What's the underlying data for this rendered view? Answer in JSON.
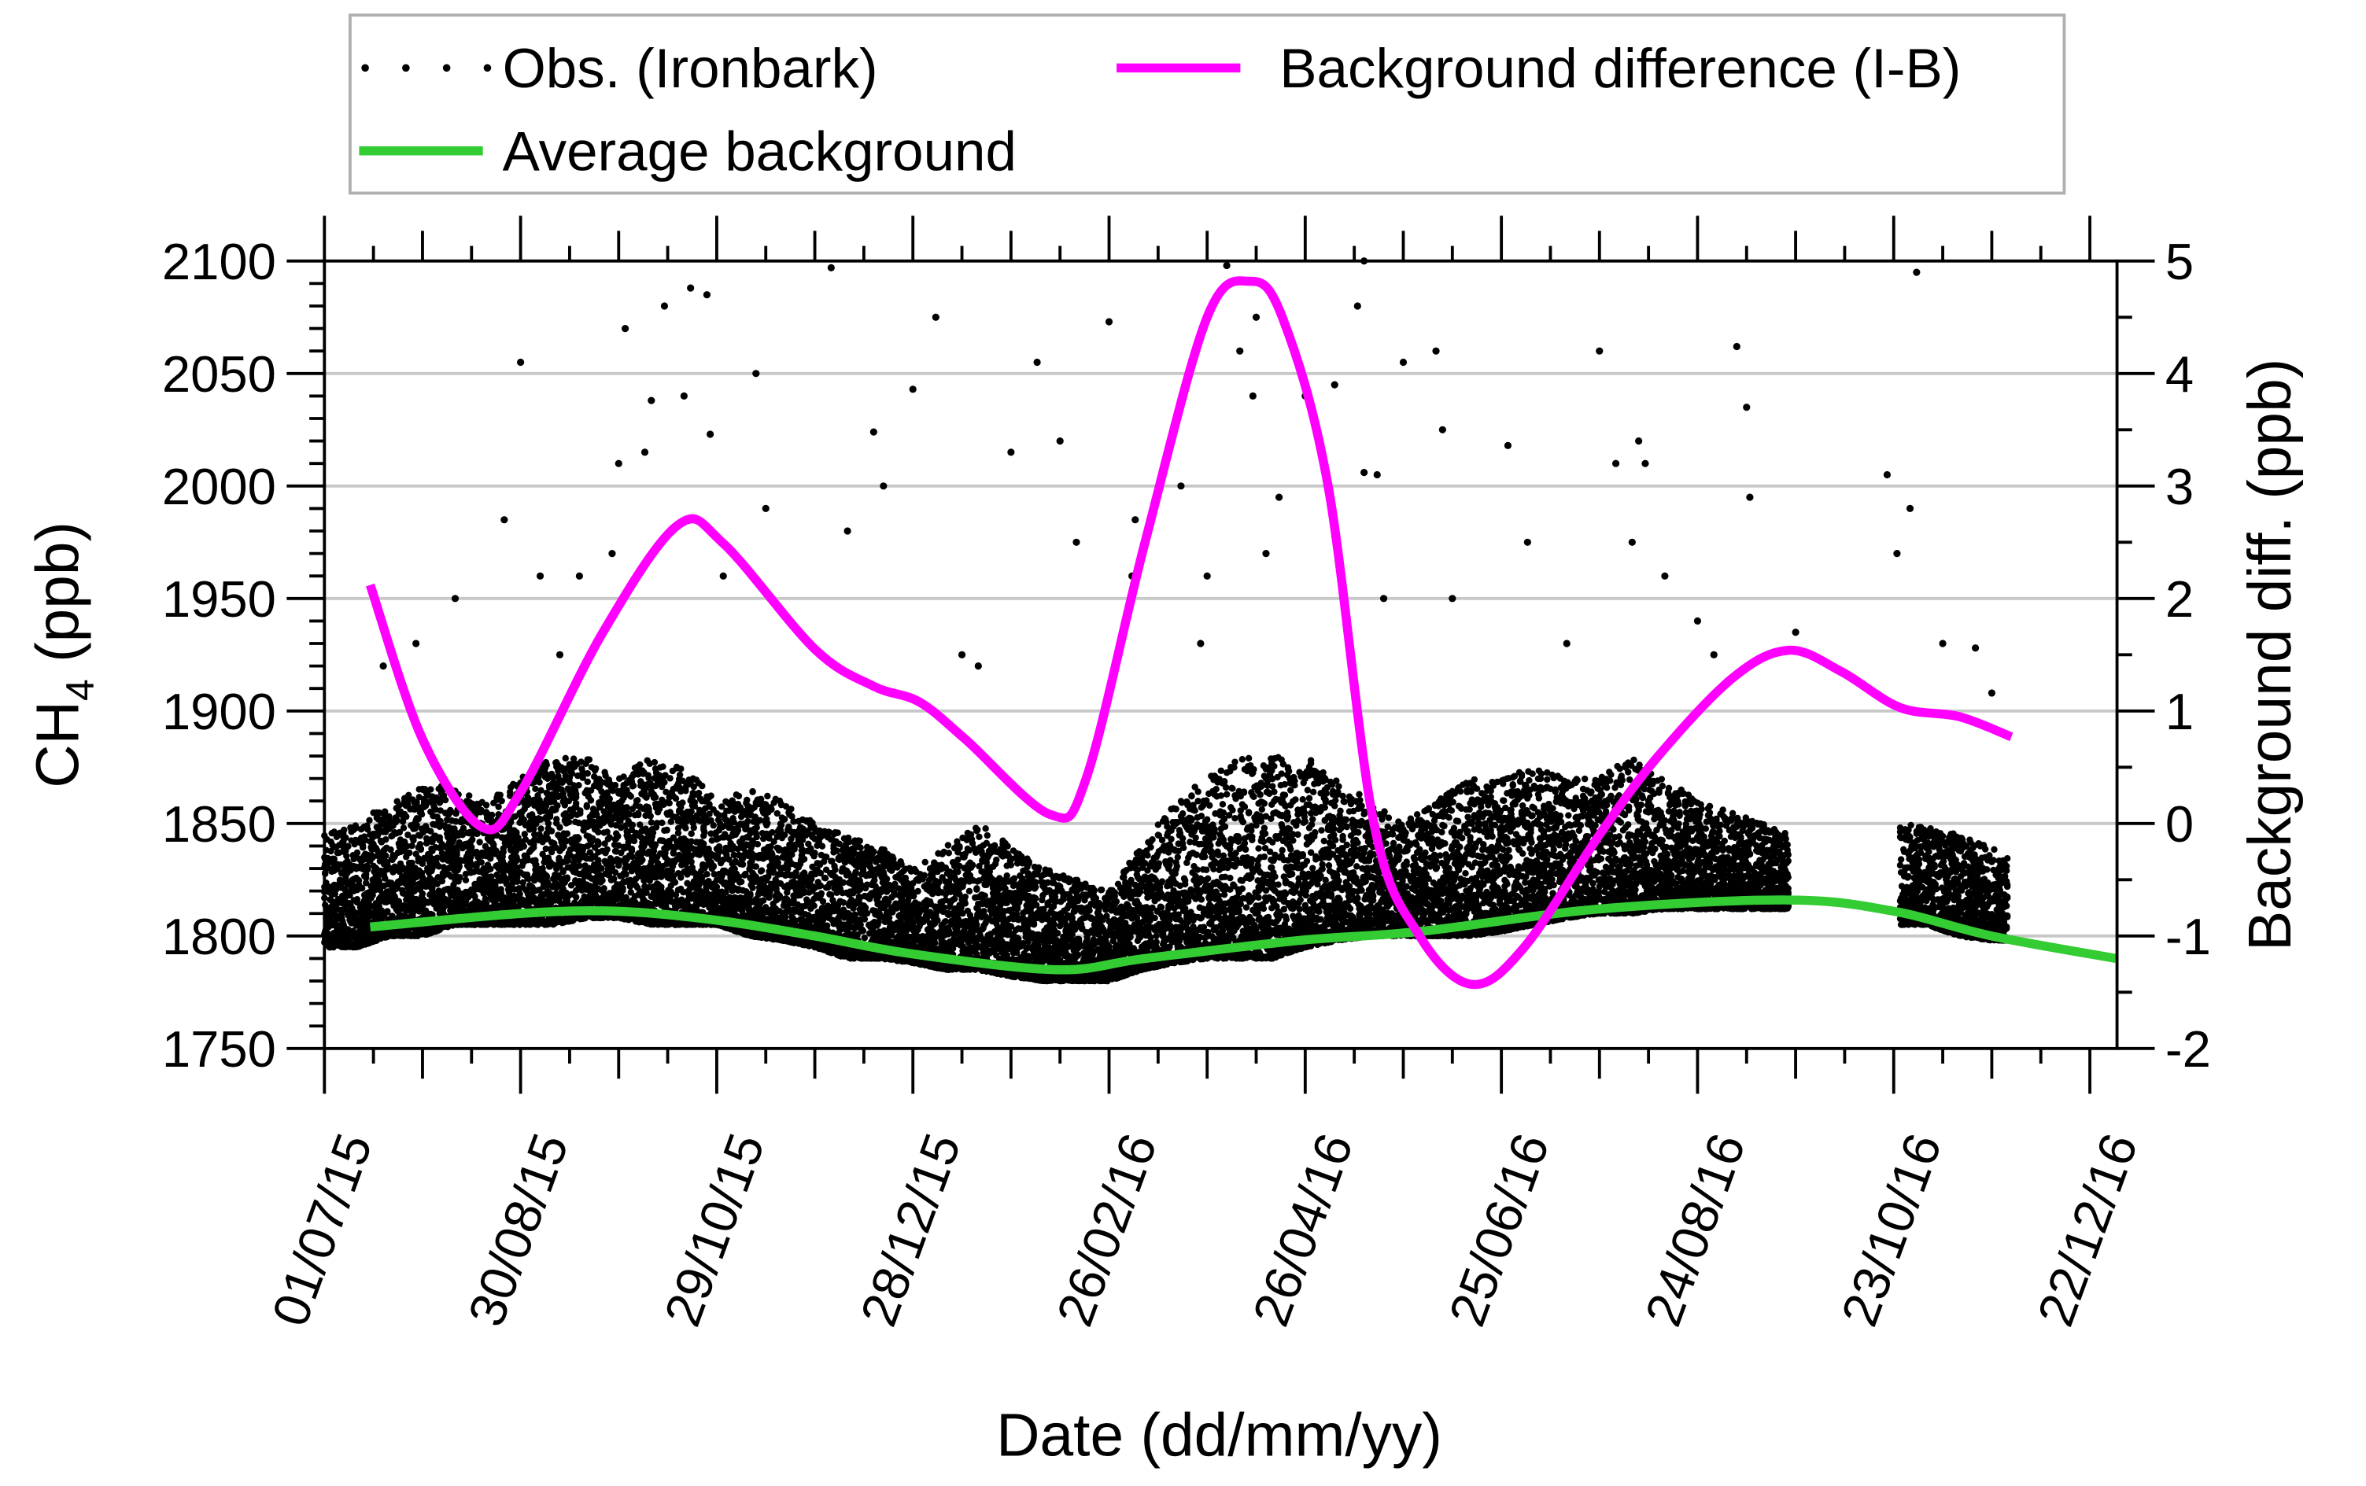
{
  "chart_data": {
    "type": "scatter+line",
    "xlabel": "Date (dd/mm/yy)",
    "ylabel_left": "CH",
    "ylabel_left_sub": "4",
    "ylabel_left_unit": " (ppb)",
    "ylabel_right": "Background diff. (ppb)",
    "x_unit": "days since 01/07/15",
    "xlim": [
      0,
      548
    ],
    "ylim_left": [
      1750,
      2100
    ],
    "ylim_right": [
      -2,
      5
    ],
    "grid": "horizontal",
    "legend_placement": "top",
    "x_ticks": [
      {
        "day": 0,
        "label": "01/07/15"
      },
      {
        "day": 60,
        "label": "30/08/15"
      },
      {
        "day": 120,
        "label": "29/10/15"
      },
      {
        "day": 180,
        "label": "28/12/15"
      },
      {
        "day": 240,
        "label": "26/02/16"
      },
      {
        "day": 300,
        "label": "26/04/16"
      },
      {
        "day": 360,
        "label": "25/06/16"
      },
      {
        "day": 420,
        "label": "24/08/16"
      },
      {
        "day": 480,
        "label": "23/10/16"
      },
      {
        "day": 540,
        "label": "22/12/16"
      }
    ],
    "y_ticks_left": [
      "1750",
      "1800",
      "1850",
      "1900",
      "1950",
      "2000",
      "2050",
      "2100"
    ],
    "y_ticks_right": [
      "-2",
      "-1",
      "0",
      "1",
      "2",
      "3",
      "4",
      "5"
    ],
    "legend": {
      "obs": "Obs. (Ironbark)",
      "diff": "Background difference (I-B)",
      "avg": "Average background"
    },
    "colors": {
      "obs": "#000000",
      "diff": "#ff00ff",
      "avg": "#33cc33",
      "grid": "#c8c8c8"
    },
    "obs_bins": [
      [
        0,
        1795,
        1845
      ],
      [
        10,
        1795,
        1850
      ],
      [
        20,
        1800,
        1860
      ],
      [
        30,
        1800,
        1870
      ],
      [
        40,
        1805,
        1865
      ],
      [
        50,
        1805,
        1860
      ],
      [
        60,
        1805,
        1870
      ],
      [
        70,
        1805,
        1880
      ],
      [
        80,
        1808,
        1880
      ],
      [
        90,
        1808,
        1870
      ],
      [
        100,
        1805,
        1880
      ],
      [
        110,
        1805,
        1875
      ],
      [
        120,
        1805,
        1860
      ],
      [
        130,
        1800,
        1865
      ],
      [
        140,
        1798,
        1860
      ],
      [
        150,
        1795,
        1850
      ],
      [
        160,
        1790,
        1845
      ],
      [
        170,
        1790,
        1840
      ],
      [
        180,
        1788,
        1830
      ],
      [
        190,
        1785,
        1840
      ],
      [
        200,
        1785,
        1850
      ],
      [
        210,
        1782,
        1840
      ],
      [
        220,
        1780,
        1830
      ],
      [
        230,
        1780,
        1825
      ],
      [
        240,
        1780,
        1820
      ],
      [
        250,
        1785,
        1840
      ],
      [
        260,
        1788,
        1860
      ],
      [
        270,
        1790,
        1870
      ],
      [
        280,
        1790,
        1880
      ],
      [
        290,
        1790,
        1880
      ],
      [
        300,
        1795,
        1880
      ],
      [
        310,
        1798,
        1870
      ],
      [
        320,
        1800,
        1860
      ],
      [
        330,
        1800,
        1850
      ],
      [
        340,
        1800,
        1860
      ],
      [
        350,
        1800,
        1870
      ],
      [
        360,
        1802,
        1870
      ],
      [
        370,
        1805,
        1875
      ],
      [
        380,
        1808,
        1870
      ],
      [
        390,
        1810,
        1870
      ],
      [
        400,
        1810,
        1880
      ],
      [
        410,
        1812,
        1870
      ],
      [
        420,
        1812,
        1860
      ],
      [
        430,
        1812,
        1855
      ],
      [
        440,
        1812,
        1850
      ],
      [
        448,
        1812,
        1845
      ],
      [
        482,
        1805,
        1850
      ],
      [
        490,
        1805,
        1850
      ],
      [
        500,
        1800,
        1845
      ],
      [
        510,
        1798,
        1840
      ],
      [
        515,
        1798,
        1835
      ]
    ],
    "obs_outliers": [
      [
        18,
        1920
      ],
      [
        28,
        1930
      ],
      [
        40,
        1950
      ],
      [
        55,
        1985
      ],
      [
        60,
        2055
      ],
      [
        66,
        1960
      ],
      [
        72,
        1925
      ],
      [
        78,
        1960
      ],
      [
        88,
        1970
      ],
      [
        90,
        2010
      ],
      [
        92,
        2070
      ],
      [
        98,
        2015
      ],
      [
        100,
        2038
      ],
      [
        104,
        2080
      ],
      [
        110,
        2040
      ],
      [
        112,
        2088
      ],
      [
        117,
        2085
      ],
      [
        118,
        2023
      ],
      [
        122,
        1960
      ],
      [
        135,
        1990
      ],
      [
        132,
        2050
      ],
      [
        155,
        2097
      ],
      [
        160,
        1980
      ],
      [
        168,
        2024
      ],
      [
        171,
        2000
      ],
      [
        180,
        2043
      ],
      [
        187,
        2075
      ],
      [
        195,
        1925
      ],
      [
        200,
        1920
      ],
      [
        210,
        2015
      ],
      [
        218,
        2055
      ],
      [
        225,
        2020
      ],
      [
        230,
        1975
      ],
      [
        240,
        2073
      ],
      [
        248,
        1985
      ],
      [
        247,
        1960
      ],
      [
        262,
        2000
      ],
      [
        268,
        1930
      ],
      [
        270,
        1960
      ],
      [
        276,
        2098
      ],
      [
        280,
        2060
      ],
      [
        284,
        2040
      ],
      [
        285,
        2075
      ],
      [
        288,
        1970
      ],
      [
        292,
        1995
      ],
      [
        300,
        2040
      ],
      [
        309,
        2045
      ],
      [
        316,
        2080
      ],
      [
        318,
        2100
      ],
      [
        318,
        2006
      ],
      [
        322,
        2005
      ],
      [
        324,
        1950
      ],
      [
        330,
        2055
      ],
      [
        340,
        2060
      ],
      [
        342,
        2025
      ],
      [
        345,
        1950
      ],
      [
        362,
        2018
      ],
      [
        368,
        1975
      ],
      [
        380,
        1930
      ],
      [
        390,
        2060
      ],
      [
        395,
        2010
      ],
      [
        400,
        1975
      ],
      [
        402,
        2020
      ],
      [
        404,
        2010
      ],
      [
        410,
        1960
      ],
      [
        420,
        1940
      ],
      [
        425,
        1925
      ],
      [
        432,
        2062
      ],
      [
        435,
        2035
      ],
      [
        436,
        1995
      ],
      [
        450,
        1935
      ],
      [
        478,
        2005
      ],
      [
        481,
        1970
      ],
      [
        485,
        1990
      ],
      [
        487,
        2095
      ],
      [
        495,
        1930
      ],
      [
        505,
        1928
      ],
      [
        510,
        1908
      ]
    ],
    "background_difference": [
      [
        14,
        2.12
      ],
      [
        30,
        0.75
      ],
      [
        48,
        -0.03
      ],
      [
        60,
        0.28
      ],
      [
        85,
        1.69
      ],
      [
        108,
        2.65
      ],
      [
        122,
        2.49
      ],
      [
        150,
        1.55
      ],
      [
        168,
        1.22
      ],
      [
        182,
        1.08
      ],
      [
        196,
        0.75
      ],
      [
        222,
        0.08
      ],
      [
        233,
        0.4
      ],
      [
        251,
        2.5
      ],
      [
        270,
        4.5
      ],
      [
        283,
        4.82
      ],
      [
        293,
        4.5
      ],
      [
        307,
        3.0
      ],
      [
        321,
        0.0
      ],
      [
        335,
        -1.0
      ],
      [
        351,
        -1.43
      ],
      [
        367,
        -1.1
      ],
      [
        390,
        -0.1
      ],
      [
        408,
        0.6
      ],
      [
        431,
        1.3
      ],
      [
        448,
        1.54
      ],
      [
        464,
        1.35
      ],
      [
        482,
        1.03
      ],
      [
        500,
        0.95
      ],
      [
        516,
        0.77
      ]
    ],
    "average_background": [
      [
        14,
        1804
      ],
      [
        60,
        1810
      ],
      [
        90,
        1811
      ],
      [
        120,
        1807
      ],
      [
        150,
        1800
      ],
      [
        180,
        1792
      ],
      [
        224,
        1785
      ],
      [
        251,
        1790
      ],
      [
        298,
        1798
      ],
      [
        335,
        1802
      ],
      [
        390,
        1812
      ],
      [
        448,
        1816
      ],
      [
        480,
        1811
      ],
      [
        510,
        1800
      ],
      [
        548,
        1790
      ]
    ]
  }
}
